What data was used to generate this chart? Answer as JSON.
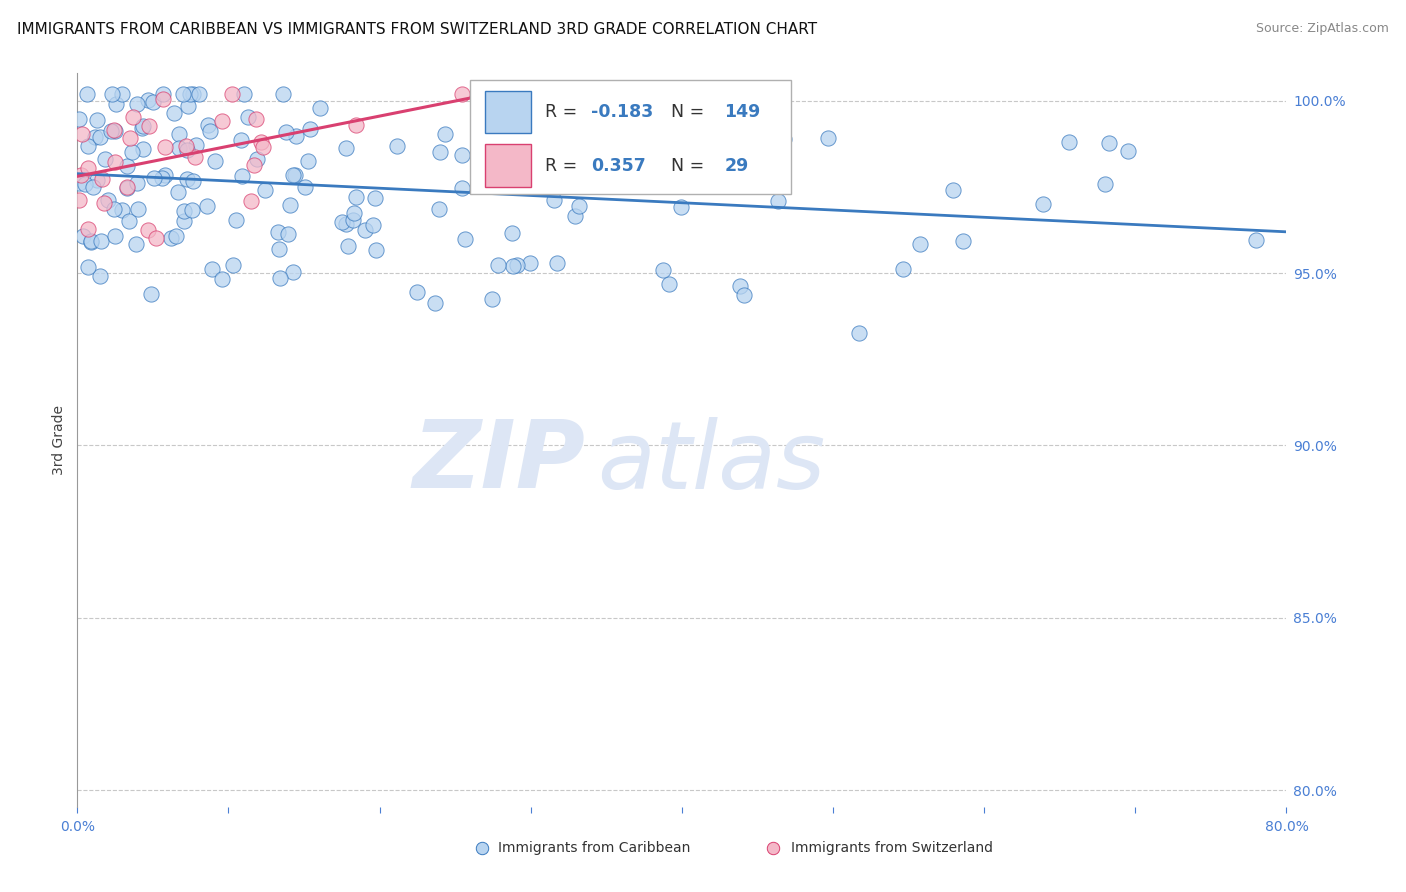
{
  "title": "IMMIGRANTS FROM CARIBBEAN VS IMMIGRANTS FROM SWITZERLAND 3RD GRADE CORRELATION CHART",
  "source": "Source: ZipAtlas.com",
  "ylabel": "3rd Grade",
  "watermark_zip": "ZIP",
  "watermark_atlas": "atlas",
  "legend_r_n": [
    {
      "R": -0.183,
      "N": 149
    },
    {
      "R": 0.357,
      "N": 29
    }
  ],
  "legend_labels": [
    "Immigrants from Caribbean",
    "Immigrants from Switzerland"
  ],
  "xlim": [
    0.0,
    0.8
  ],
  "ylim": [
    0.795,
    1.008
  ],
  "yticks": [
    0.8,
    0.85,
    0.9,
    0.95,
    1.0
  ],
  "ytick_labels": [
    "80.0%",
    "85.0%",
    "90.0%",
    "95.0%",
    "100.0%"
  ],
  "xticks": [
    0.0,
    0.1,
    0.2,
    0.3,
    0.4,
    0.5,
    0.6,
    0.7,
    0.8
  ],
  "grid_color": "#c8c8c8",
  "background_color": "#ffffff",
  "scatter_blue_color": "#b8d4f0",
  "scatter_pink_color": "#f4b8c8",
  "trendline_blue_color": "#3a7abf",
  "trendline_pink_color": "#d94070",
  "scatter_size": 120,
  "title_fontsize": 11,
  "axis_tick_color": "#4a7fd4",
  "axis_line_color": "#999999"
}
